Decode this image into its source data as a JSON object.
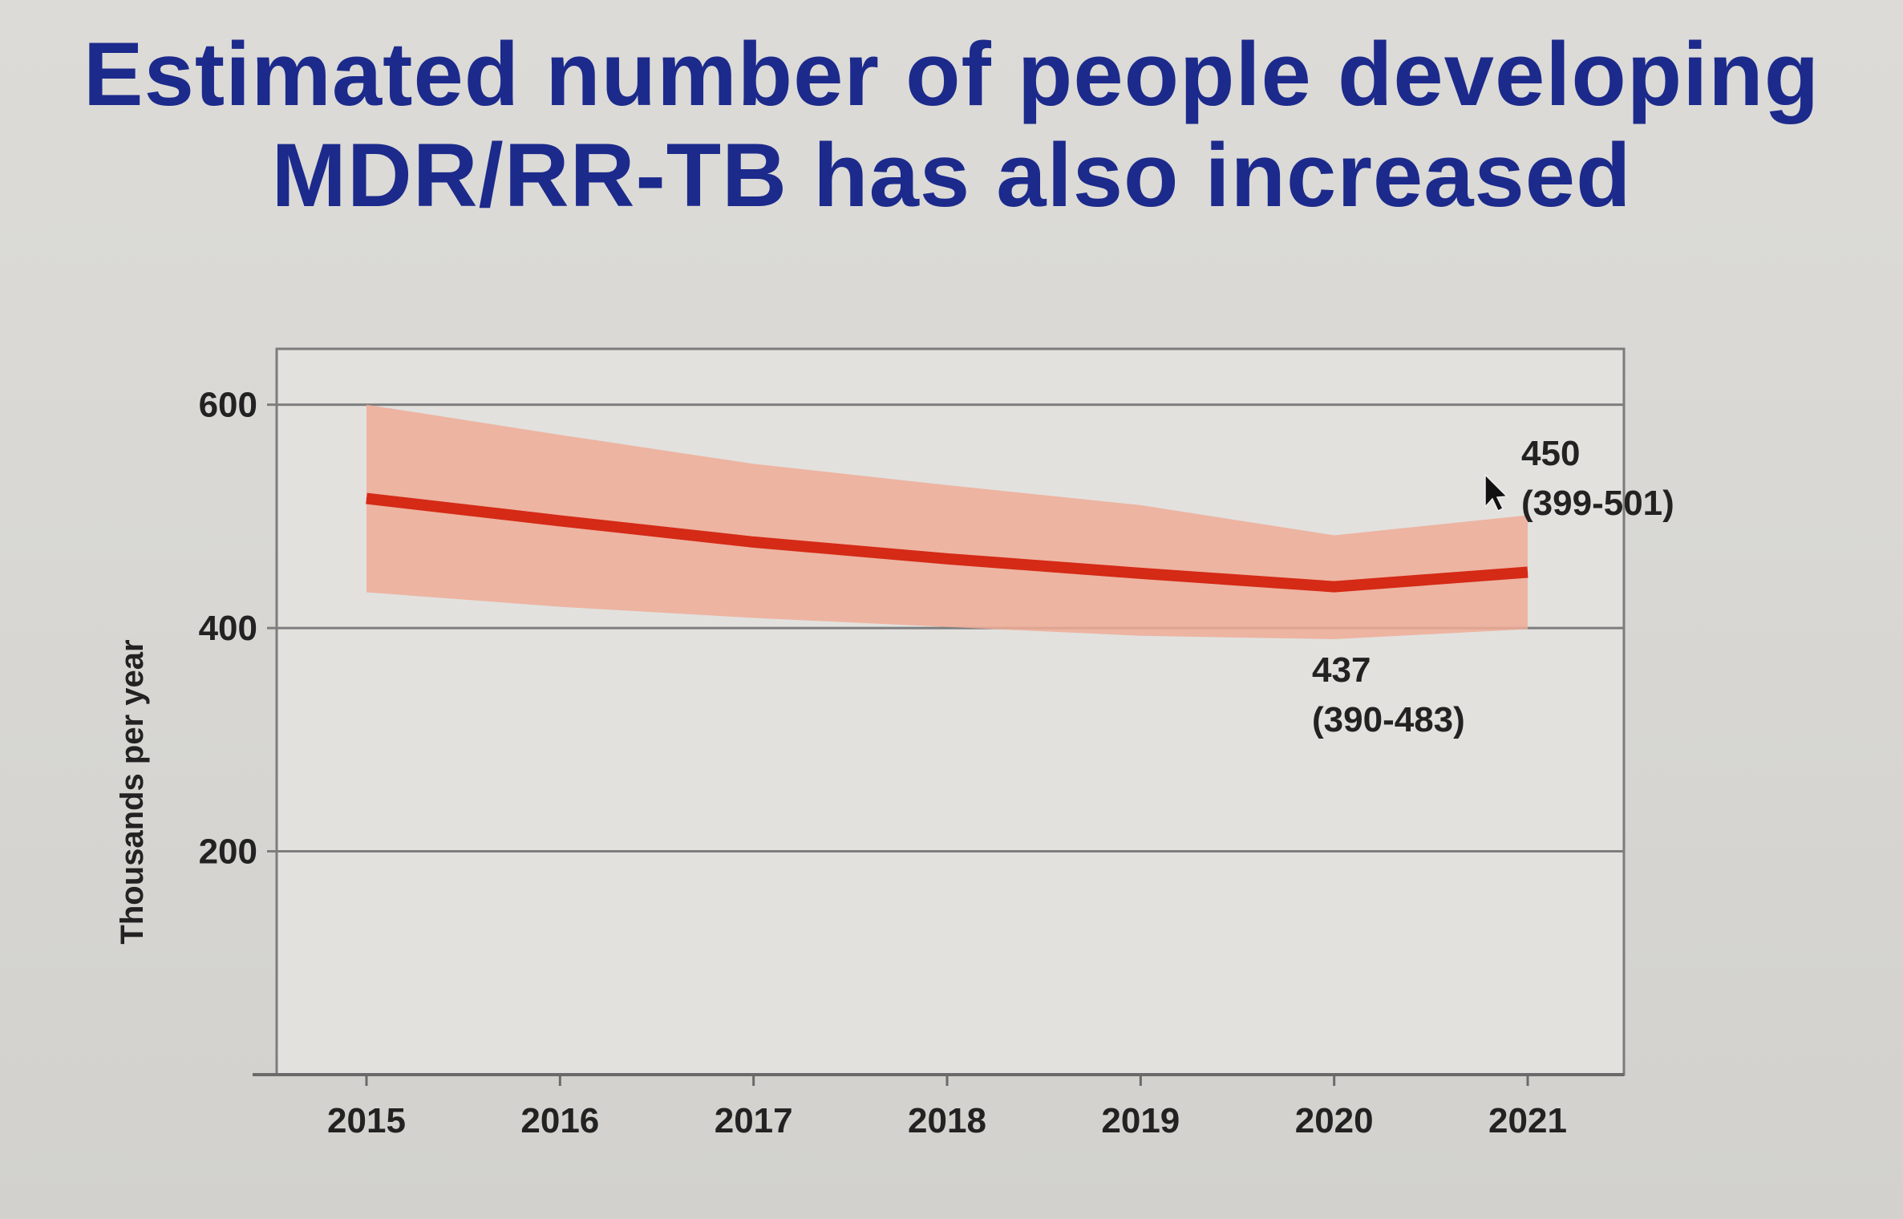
{
  "slide": {
    "title_line1": "Estimated number of people developing",
    "title_line2": "MDR/RR-TB has also increased",
    "title_color": "#1c2a8c"
  },
  "chart_data": {
    "type": "line",
    "ylabel": "Thousands per year",
    "xlabel": "",
    "x": [
      2015,
      2016,
      2017,
      2018,
      2019,
      2020,
      2021
    ],
    "series": [
      {
        "values": [
          516,
          496,
          477,
          462,
          449,
          437,
          450
        ],
        "lower": [
          432,
          419,
          409,
          401,
          393,
          390,
          399
        ],
        "upper": [
          600,
          573,
          547,
          528,
          510,
          483,
          501
        ],
        "color": "#d42a16",
        "band_color": "#eeab96"
      }
    ],
    "ylim": [
      0,
      650
    ],
    "yticks": [
      600,
      400,
      200
    ],
    "grid": true,
    "annotations": [
      {
        "x": 2021,
        "value": "450",
        "range": "(399-501)"
      },
      {
        "x": 2020,
        "value": "437",
        "range": "(390-483)"
      }
    ]
  }
}
